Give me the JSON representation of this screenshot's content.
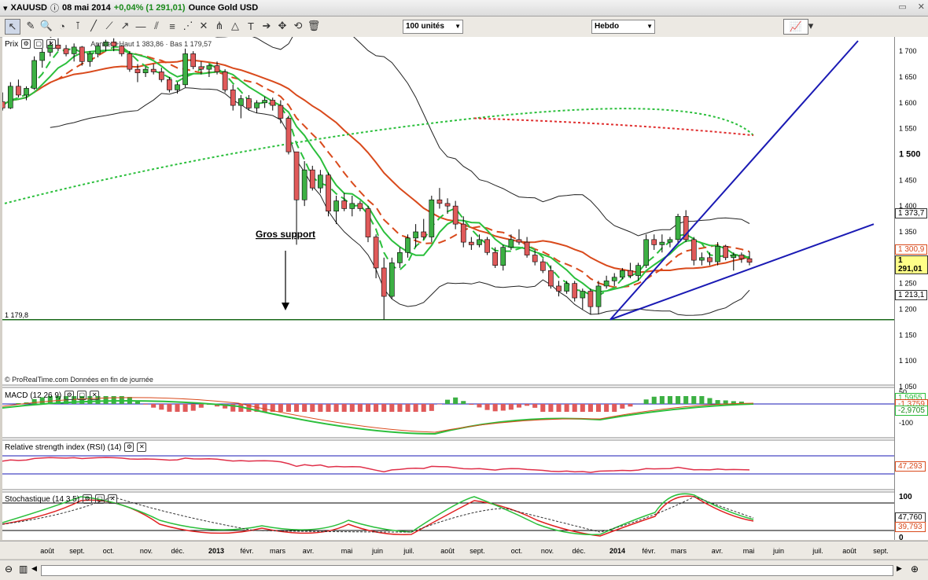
{
  "titlebar": {
    "symbol": "XAUUSD",
    "date": "08 mai 2014",
    "change": "+0,04% (1 291,01)",
    "name": "Ounce Gold USD"
  },
  "toolbar": {
    "units_select": "100 unités",
    "period_select": "Hebdo"
  },
  "panels": {
    "price": {
      "label": "Prix",
      "legend_text": "Année :+Haut 1 383,86 · Bas 1 179,57",
      "annotation": "Gros support",
      "support_label": "1 179,8",
      "footer": "© ProRealTime.com  Données en fin de journée"
    },
    "macd": {
      "label": "MACD (12 26 9)"
    },
    "rsi": {
      "label": "Relative strength index (RSI) (14)"
    },
    "stoch": {
      "label": "Stochastique (14 3 5)"
    }
  },
  "price_axis_ticks": [
    "1 700",
    "1 650",
    "1 600",
    "1 550",
    "1 500",
    "1 450",
    "1 400",
    "1 350",
    "1 250",
    "1 200",
    "1 150",
    "1 100",
    "1 050"
  ],
  "price_tags": {
    "upper_band": "1 373,7",
    "ma": "1 300,9",
    "last": "1 291,01",
    "lower_band": "1 213,1"
  },
  "macd_axis": [
    "50",
    "-50",
    "-100"
  ],
  "macd_tags": {
    "macd": "1,5955",
    "signal": "-1,3759",
    "hist": "-2,9705"
  },
  "rsi_tag": "47,293",
  "stoch_axis": [
    "100",
    "50",
    "0"
  ],
  "stoch_tags": {
    "k": "47,760",
    "d": "39,793"
  },
  "time_labels": [
    "août",
    "sept.",
    "oct.",
    "nov.",
    "déc.",
    "2013",
    "févr.",
    "mars",
    "avr.",
    "mai",
    "juin",
    "juil.",
    "août",
    "sept.",
    "oct.",
    "nov.",
    "déc.",
    "2014",
    "févr.",
    "mars",
    "avr.",
    "mai",
    "juin",
    "juil.",
    "août",
    "sept."
  ],
  "colors": {
    "up": "#3cb043",
    "down": "#e05a5a",
    "ma_red": "#d94a1c",
    "ma_green": "#2bbf3c",
    "trend_blue": "#1a1ab4",
    "support_green": "#1a6a1a"
  },
  "chart_data": {
    "type": "candlestick",
    "timeframe": "weekly",
    "ylim": [
      1050,
      1720
    ],
    "support_level": 1179.8,
    "ohlc": [
      [
        1608,
        1618,
        1590,
        1595
      ],
      [
        1595,
        1605,
        1578,
        1602
      ],
      [
        1602,
        1620,
        1585,
        1590
      ],
      [
        1590,
        1640,
        1588,
        1632
      ],
      [
        1632,
        1645,
        1610,
        1615
      ],
      [
        1615,
        1632,
        1605,
        1628
      ],
      [
        1628,
        1690,
        1625,
        1682
      ],
      [
        1682,
        1705,
        1668,
        1698
      ],
      [
        1698,
        1720,
        1690,
        1712
      ],
      [
        1712,
        1725,
        1700,
        1705
      ],
      [
        1705,
        1712,
        1690,
        1695
      ],
      [
        1695,
        1715,
        1680,
        1708
      ],
      [
        1708,
        1710,
        1672,
        1680
      ],
      [
        1680,
        1700,
        1670,
        1695
      ],
      [
        1695,
        1715,
        1688,
        1710
      ],
      [
        1710,
        1722,
        1700,
        1718
      ],
      [
        1718,
        1725,
        1700,
        1710
      ],
      [
        1710,
        1712,
        1690,
        1695
      ],
      [
        1695,
        1700,
        1660,
        1665
      ],
      [
        1665,
        1675,
        1640,
        1658
      ],
      [
        1658,
        1670,
        1650,
        1665
      ],
      [
        1665,
        1675,
        1655,
        1660
      ],
      [
        1660,
        1668,
        1640,
        1645
      ],
      [
        1645,
        1650,
        1620,
        1625
      ],
      [
        1625,
        1640,
        1618,
        1635
      ],
      [
        1635,
        1705,
        1630,
        1695
      ],
      [
        1695,
        1700,
        1665,
        1670
      ],
      [
        1670,
        1680,
        1655,
        1665
      ],
      [
        1665,
        1675,
        1650,
        1672
      ],
      [
        1672,
        1680,
        1655,
        1660
      ],
      [
        1660,
        1665,
        1620,
        1625
      ],
      [
        1625,
        1635,
        1585,
        1595
      ],
      [
        1595,
        1615,
        1570,
        1608
      ],
      [
        1608,
        1615,
        1585,
        1590
      ],
      [
        1590,
        1605,
        1580,
        1600
      ],
      [
        1600,
        1612,
        1590,
        1605
      ],
      [
        1605,
        1610,
        1585,
        1595
      ],
      [
        1595,
        1605,
        1560,
        1570
      ],
      [
        1570,
        1575,
        1500,
        1505
      ],
      [
        1505,
        1505,
        1325,
        1412
      ],
      [
        1412,
        1487,
        1400,
        1470
      ],
      [
        1470,
        1478,
        1430,
        1435
      ],
      [
        1435,
        1470,
        1425,
        1460
      ],
      [
        1460,
        1465,
        1380,
        1390
      ],
      [
        1390,
        1420,
        1365,
        1410
      ],
      [
        1410,
        1425,
        1390,
        1395
      ],
      [
        1395,
        1420,
        1380,
        1405
      ],
      [
        1405,
        1410,
        1390,
        1395
      ],
      [
        1395,
        1400,
        1330,
        1340
      ],
      [
        1340,
        1345,
        1260,
        1280
      ],
      [
        1280,
        1300,
        1180,
        1225
      ],
      [
        1225,
        1300,
        1220,
        1290
      ],
      [
        1290,
        1320,
        1280,
        1310
      ],
      [
        1310,
        1345,
        1300,
        1338
      ],
      [
        1338,
        1365,
        1320,
        1350
      ],
      [
        1350,
        1375,
        1335,
        1340
      ],
      [
        1340,
        1420,
        1330,
        1412
      ],
      [
        1412,
        1435,
        1395,
        1405
      ],
      [
        1405,
        1415,
        1385,
        1400
      ],
      [
        1400,
        1410,
        1355,
        1365
      ],
      [
        1365,
        1380,
        1320,
        1330
      ],
      [
        1330,
        1340,
        1315,
        1325
      ],
      [
        1325,
        1345,
        1320,
        1335
      ],
      [
        1335,
        1340,
        1305,
        1310
      ],
      [
        1310,
        1320,
        1280,
        1285
      ],
      [
        1285,
        1325,
        1275,
        1320
      ],
      [
        1320,
        1345,
        1315,
        1335
      ],
      [
        1335,
        1355,
        1325,
        1330
      ],
      [
        1330,
        1340,
        1300,
        1305
      ],
      [
        1305,
        1315,
        1285,
        1292
      ],
      [
        1292,
        1298,
        1270,
        1275
      ],
      [
        1275,
        1285,
        1240,
        1245
      ],
      [
        1245,
        1255,
        1225,
        1235
      ],
      [
        1235,
        1255,
        1230,
        1250
      ],
      [
        1250,
        1255,
        1215,
        1222
      ],
      [
        1222,
        1240,
        1200,
        1235
      ],
      [
        1235,
        1240,
        1190,
        1205
      ],
      [
        1205,
        1255,
        1190,
        1245
      ],
      [
        1245,
        1265,
        1240,
        1255
      ],
      [
        1255,
        1270,
        1245,
        1262
      ],
      [
        1262,
        1280,
        1258,
        1275
      ],
      [
        1275,
        1290,
        1260,
        1265
      ],
      [
        1265,
        1290,
        1255,
        1285
      ],
      [
        1285,
        1345,
        1280,
        1335
      ],
      [
        1335,
        1345,
        1315,
        1325
      ],
      [
        1325,
        1345,
        1310,
        1330
      ],
      [
        1330,
        1340,
        1320,
        1335
      ],
      [
        1335,
        1385,
        1325,
        1380
      ],
      [
        1380,
        1392,
        1330,
        1335
      ],
      [
        1335,
        1340,
        1285,
        1295
      ],
      [
        1295,
        1310,
        1285,
        1300
      ],
      [
        1300,
        1310,
        1285,
        1292
      ],
      [
        1292,
        1330,
        1285,
        1322
      ],
      [
        1322,
        1325,
        1295,
        1300
      ],
      [
        1300,
        1310,
        1275,
        1305
      ],
      [
        1305,
        1310,
        1290,
        1298
      ],
      [
        1298,
        1312,
        1285,
        1291
      ]
    ],
    "upper_band_level": 1373.7,
    "ma_level": 1300.9,
    "last": 1291.01,
    "lower_band_level": 1213.1
  }
}
